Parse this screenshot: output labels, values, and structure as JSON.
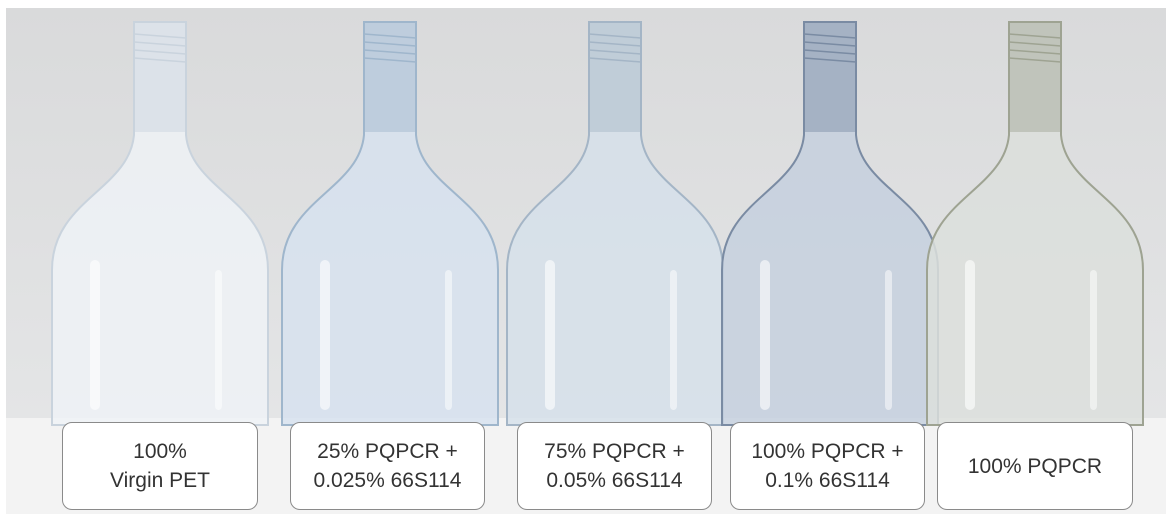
{
  "labels": [
    [
      "100%",
      "Virgin PET"
    ],
    [
      "25% PQPCR +",
      "0.025% 66S114"
    ],
    [
      "75% PQPCR +",
      "0.05% 66S114"
    ],
    [
      "100% PQPCR +",
      "0.1% 66S114"
    ],
    [
      "100% PQPCR"
    ]
  ]
}
